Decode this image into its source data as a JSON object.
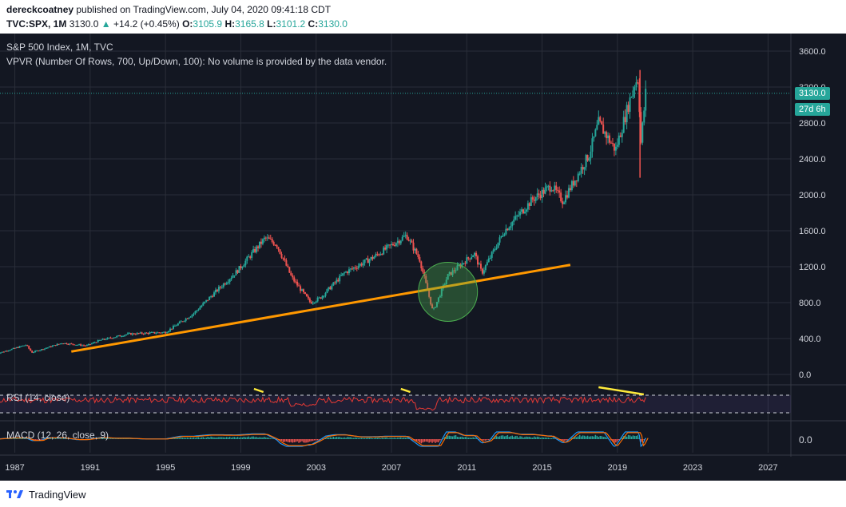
{
  "header": {
    "author": "dereckcoatney",
    "published_text": " published on TradingView.com, July 04, 2020 09:41:18 CDT",
    "symbol": "TVC:SPX, 1M",
    "last": "3130.0",
    "arrow": "▲",
    "change": "+14.2 (+0.45%)",
    "o_label": "O:",
    "o_value": "3105.9",
    "h_label": "H:",
    "h_value": "3165.8",
    "l_label": "L:",
    "l_value": "3101.2",
    "c_label": "C:",
    "c_value": "3130.0"
  },
  "main_pane": {
    "title": "S&P 500 Index, 1M, TVC",
    "indicator": "VPVR (Number Of Rows, 700, Up/Down, 100): No volume is provided by the data vendor."
  },
  "rsi_pane": {
    "label": "RSI (14, close)"
  },
  "macd_pane": {
    "label": "MACD (12, 26, close, 9)",
    "zero_label": "0.0"
  },
  "price_tags": {
    "last_price": "3130.0",
    "countdown": "27d 6h"
  },
  "footer": {
    "brand": "TradingView"
  },
  "colors": {
    "background": "#131722",
    "up": "#26a69a",
    "down": "#ef5350",
    "trendline": "#ff9800",
    "highlight": "#4caf50",
    "rsi_line": "#e53935",
    "rsi_annotation": "#ffeb3b",
    "macd_line": "#2196f3",
    "signal_line": "#ff6d00"
  },
  "chart_data": {
    "type": "candlestick",
    "title": "S&P 500 Index, 1M, TVC",
    "y_axis_ticks": [
      "3600.0",
      "3200.0",
      "2800.0",
      "2400.0",
      "2000.0",
      "1600.0",
      "1200.0",
      "800.0",
      "400.0",
      "0.0"
    ],
    "x_axis_ticks": [
      "1987",
      "1991",
      "1995",
      "1999",
      "2003",
      "2007",
      "2011",
      "2015",
      "2019",
      "2023",
      "2027"
    ],
    "ylim": [
      0,
      3600
    ],
    "xlim": [
      1986.0,
      2028.0
    ],
    "grid": true,
    "price_series": [
      {
        "x": 1986.0,
        "y": 230
      },
      {
        "x": 1987.6,
        "y": 330
      },
      {
        "x": 1987.9,
        "y": 245
      },
      {
        "x": 1989.5,
        "y": 350
      },
      {
        "x": 1990.8,
        "y": 320
      },
      {
        "x": 1991.5,
        "y": 380
      },
      {
        "x": 1993.0,
        "y": 450
      },
      {
        "x": 1995.0,
        "y": 470
      },
      {
        "x": 1996.5,
        "y": 680
      },
      {
        "x": 1997.8,
        "y": 950
      },
      {
        "x": 1998.8,
        "y": 1150
      },
      {
        "x": 2000.3,
        "y": 1520
      },
      {
        "x": 2000.9,
        "y": 1450
      },
      {
        "x": 2001.7,
        "y": 1080
      },
      {
        "x": 2002.7,
        "y": 800
      },
      {
        "x": 2003.2,
        "y": 850
      },
      {
        "x": 2004.5,
        "y": 1130
      },
      {
        "x": 2006.0,
        "y": 1300
      },
      {
        "x": 2007.8,
        "y": 1550
      },
      {
        "x": 2008.5,
        "y": 1280
      },
      {
        "x": 2009.2,
        "y": 700
      },
      {
        "x": 2010.0,
        "y": 1100
      },
      {
        "x": 2011.4,
        "y": 1350
      },
      {
        "x": 2011.8,
        "y": 1130
      },
      {
        "x": 2013.0,
        "y": 1600
      },
      {
        "x": 2014.5,
        "y": 1950
      },
      {
        "x": 2015.5,
        "y": 2100
      },
      {
        "x": 2016.1,
        "y": 1930
      },
      {
        "x": 2017.5,
        "y": 2450
      },
      {
        "x": 2018.0,
        "y": 2800
      },
      {
        "x": 2018.9,
        "y": 2500
      },
      {
        "x": 2019.9,
        "y": 3230
      },
      {
        "x": 2020.1,
        "y": 3300
      },
      {
        "x": 2020.25,
        "y": 2580
      },
      {
        "x": 2020.5,
        "y": 3130
      }
    ],
    "trendline": {
      "start": {
        "x": 1990.0,
        "y": 255
      },
      "end": {
        "x": 2016.5,
        "y": 1220
      }
    },
    "highlight_circle": {
      "x": 2010.0,
      "y": 920
    },
    "last_price": 3130.0,
    "rsi": {
      "label": "RSI (14, close)",
      "upper": 70,
      "lower": 30
    },
    "macd": {
      "label": "MACD (12, 26, close, 9)"
    }
  }
}
